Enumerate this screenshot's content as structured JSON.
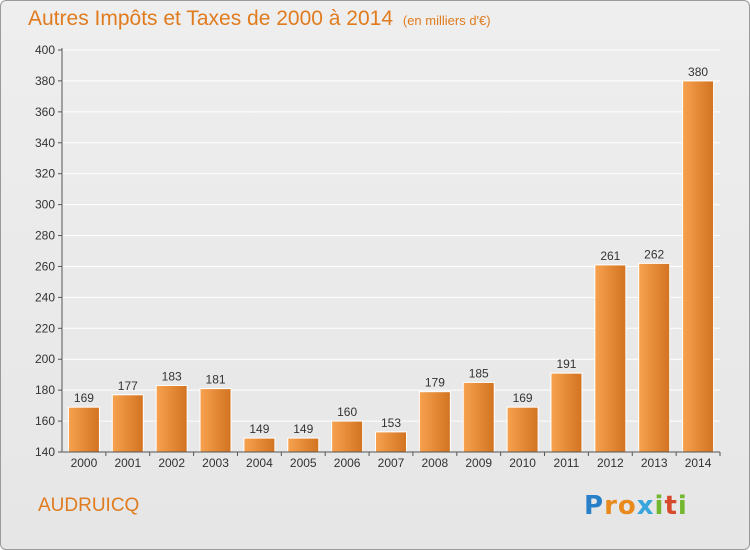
{
  "title": {
    "main": "Autres Impôts et Taxes de 2000 à 2014",
    "unit": "(en milliers d'€)"
  },
  "commune": "AUDRUICQ",
  "brand": {
    "letters": [
      "P",
      "r",
      "o",
      "x",
      "i",
      "t",
      "i"
    ],
    "colors": [
      "#2a7fc9",
      "#e98a1f",
      "#e98a1f",
      "#3aa4dc",
      "#74b72e",
      "#d64a2b",
      "#74b72e"
    ]
  },
  "colors": {
    "accent": "#e07c1f",
    "bar_light": "#f7a24f",
    "bar_dark": "#d27320",
    "axis": "#555555",
    "grid": "#ffffff"
  },
  "chart_data": {
    "type": "bar",
    "categories": [
      "2000",
      "2001",
      "2002",
      "2003",
      "2004",
      "2005",
      "2006",
      "2007",
      "2008",
      "2009",
      "2010",
      "2011",
      "2012",
      "2013",
      "2014"
    ],
    "values": [
      169,
      177,
      183,
      181,
      149,
      149,
      160,
      153,
      179,
      185,
      169,
      191,
      261,
      262,
      380
    ],
    "ylim": [
      140,
      400
    ],
    "yticks": [
      140,
      160,
      180,
      200,
      220,
      240,
      260,
      280,
      300,
      320,
      340,
      360,
      380,
      400
    ],
    "grid": true,
    "data_labels": true
  }
}
